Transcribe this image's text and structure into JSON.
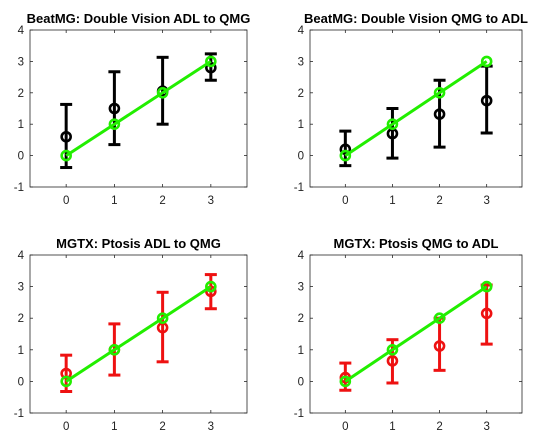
{
  "chart_data": [
    {
      "type": "errorbar",
      "title": "BeatMG: Double Vision ADL to QMG",
      "xticks": [
        0,
        1,
        2,
        3
      ],
      "yticks": [
        -1,
        0,
        1,
        2,
        3,
        4
      ],
      "xlim": [
        -0.75,
        3.75
      ],
      "ylim": [
        -1,
        4
      ],
      "grid": false,
      "series": [
        {
          "x": [
            0,
            1,
            2,
            3
          ],
          "y": [
            0.6,
            1.5,
            2.05,
            2.8
          ],
          "lower": [
            -0.38,
            0.35,
            1.0,
            2.4
          ],
          "upper": [
            1.63,
            2.67,
            3.13,
            3.24
          ]
        },
        {
          "x": [
            0,
            1,
            2,
            3
          ],
          "y": [
            0,
            1,
            2,
            3
          ]
        }
      ]
    },
    {
      "type": "errorbar",
      "title": "BeatMG: Double Vision QMG to ADL",
      "xticks": [
        0,
        1,
        2,
        3
      ],
      "yticks": [
        -1,
        0,
        1,
        2,
        3,
        4
      ],
      "xlim": [
        -0.75,
        3.75
      ],
      "ylim": [
        -1,
        4
      ],
      "grid": false,
      "series": [
        {
          "x": [
            0,
            1,
            2,
            3
          ],
          "y": [
            0.2,
            0.7,
            1.32,
            1.75
          ],
          "lower": [
            -0.32,
            -0.08,
            0.27,
            0.72
          ],
          "upper": [
            0.78,
            1.5,
            2.4,
            2.85
          ]
        },
        {
          "x": [
            0,
            1,
            2,
            3
          ],
          "y": [
            0,
            1,
            2,
            3
          ]
        }
      ]
    },
    {
      "type": "errorbar",
      "title": "MGTX: Ptosis ADL to QMG",
      "xticks": [
        0,
        1,
        2,
        3
      ],
      "yticks": [
        -1,
        0,
        1,
        2,
        3,
        4
      ],
      "xlim": [
        -0.75,
        3.75
      ],
      "ylim": [
        -1,
        4
      ],
      "grid": false,
      "series": [
        {
          "x": [
            0,
            1,
            2,
            3
          ],
          "y": [
            0.25,
            1.0,
            1.7,
            2.85
          ],
          "lower": [
            -0.32,
            0.2,
            0.62,
            2.3
          ],
          "upper": [
            0.83,
            1.82,
            2.82,
            3.38
          ]
        },
        {
          "x": [
            0,
            1,
            2,
            3
          ],
          "y": [
            0,
            1,
            2,
            3
          ]
        }
      ]
    },
    {
      "type": "errorbar",
      "title": "MGTX: Ptosis QMG to ADL",
      "xticks": [
        0,
        1,
        2,
        3
      ],
      "yticks": [
        -1,
        0,
        1,
        2,
        3,
        4
      ],
      "xlim": [
        -0.75,
        3.75
      ],
      "ylim": [
        -1,
        4
      ],
      "grid": false,
      "series": [
        {
          "x": [
            0,
            1,
            2,
            3
          ],
          "y": [
            0.12,
            0.65,
            1.12,
            2.15
          ],
          "lower": [
            -0.28,
            -0.05,
            0.35,
            1.18
          ],
          "upper": [
            0.58,
            1.32,
            2.0,
            3.05
          ]
        },
        {
          "x": [
            0,
            1,
            2,
            3
          ],
          "y": [
            0,
            1,
            2,
            3
          ]
        }
      ]
    }
  ],
  "colors": {
    "top_row_markers": "#000000",
    "bottom_row_markers": "#ee1111",
    "reference_line": "#22ee00",
    "axes": "#262626"
  }
}
